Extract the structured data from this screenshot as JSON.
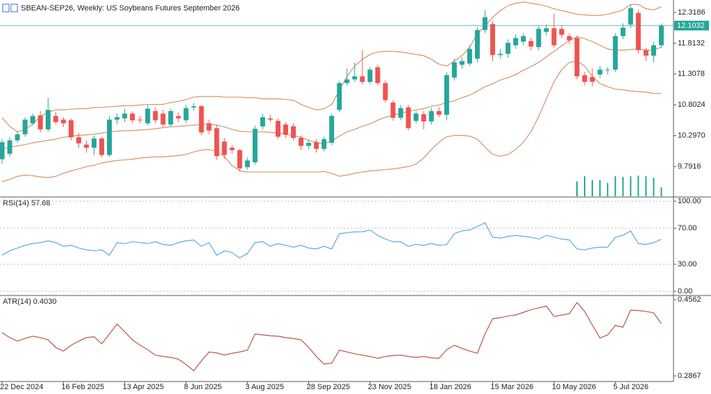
{
  "chart_data": [
    {
      "type": "candlestick",
      "title": "SBEAN-SEP26, Weekly:  US Soybeans Futures September 2026",
      "categories": [
        "22 Dec 2024",
        null,
        null,
        null,
        null,
        null,
        null,
        null,
        "16 Feb 2025",
        null,
        null,
        null,
        null,
        null,
        null,
        null,
        "13 Apr 2025",
        null,
        null,
        null,
        null,
        null,
        null,
        null,
        "8 Jun 2025",
        null,
        null,
        null,
        null,
        null,
        null,
        null,
        "3 Aug 2025",
        null,
        null,
        null,
        null,
        null,
        null,
        null,
        "28 Sep 2025",
        null,
        null,
        null,
        null,
        null,
        null,
        null,
        "23 Nov 2025",
        null,
        null,
        null,
        null,
        null,
        null,
        null,
        "18 Jan 2026",
        null,
        null,
        null,
        null,
        null,
        null,
        null,
        "15 Mar 2026",
        null,
        null,
        null,
        null,
        null,
        null,
        null,
        "10 May 2026",
        null,
        null,
        null,
        null,
        null,
        null,
        null,
        "5 Jul 2026",
        null,
        null,
        null,
        null,
        null,
        null
      ],
      "ohlc": [
        [
          9.91,
          10.24,
          9.84,
          10.19
        ],
        [
          10.0,
          10.27,
          9.95,
          10.22
        ],
        [
          10.22,
          10.36,
          10.18,
          10.32
        ],
        [
          10.32,
          10.6,
          10.28,
          10.56
        ],
        [
          10.5,
          10.66,
          10.46,
          10.62
        ],
        [
          10.63,
          10.7,
          10.35,
          10.4
        ],
        [
          10.4,
          10.92,
          10.36,
          10.72
        ],
        [
          10.62,
          10.68,
          10.48,
          10.52
        ],
        [
          10.56,
          10.6,
          10.44,
          10.5
        ],
        [
          10.55,
          10.58,
          10.22,
          10.27
        ],
        [
          10.27,
          10.34,
          10.1,
          10.17
        ],
        [
          10.15,
          10.22,
          10.02,
          10.1
        ],
        [
          10.1,
          10.3,
          9.98,
          10.25
        ],
        [
          10.25,
          10.28,
          9.94,
          9.98
        ],
        [
          9.98,
          10.62,
          9.95,
          10.56
        ],
        [
          10.56,
          10.66,
          10.48,
          10.6
        ],
        [
          10.58,
          10.74,
          10.52,
          10.66
        ],
        [
          10.66,
          10.7,
          10.5,
          10.55
        ],
        [
          10.56,
          10.62,
          10.5,
          10.55
        ],
        [
          10.5,
          10.8,
          10.46,
          10.74
        ],
        [
          10.7,
          10.76,
          10.5,
          10.55
        ],
        [
          10.66,
          10.72,
          10.44,
          10.48
        ],
        [
          10.48,
          10.74,
          10.44,
          10.7
        ],
        [
          10.62,
          10.68,
          10.52,
          10.58
        ],
        [
          10.55,
          10.8,
          10.5,
          10.75
        ],
        [
          10.76,
          10.84,
          10.7,
          10.78
        ],
        [
          10.78,
          10.8,
          10.3,
          10.35
        ],
        [
          10.5,
          10.56,
          10.32,
          10.38
        ],
        [
          10.42,
          10.48,
          9.9,
          9.96
        ],
        [
          10.2,
          10.26,
          9.92,
          9.98
        ],
        [
          10.1,
          10.14,
          10.0,
          10.06
        ],
        [
          10.06,
          10.08,
          9.72,
          9.76
        ],
        [
          9.78,
          9.94,
          9.74,
          9.89
        ],
        [
          9.86,
          10.46,
          9.82,
          10.41
        ],
        [
          10.45,
          10.66,
          10.4,
          10.6
        ],
        [
          10.58,
          10.64,
          10.52,
          10.56
        ],
        [
          10.54,
          10.58,
          10.24,
          10.28
        ],
        [
          10.48,
          10.52,
          10.26,
          10.31
        ],
        [
          10.45,
          10.5,
          10.22,
          10.26
        ],
        [
          10.26,
          10.3,
          10.06,
          10.13
        ],
        [
          10.13,
          10.22,
          10.08,
          10.18
        ],
        [
          10.19,
          10.24,
          10.02,
          10.08
        ],
        [
          10.08,
          10.28,
          10.04,
          10.24
        ],
        [
          10.18,
          10.66,
          10.14,
          10.62
        ],
        [
          10.72,
          11.2,
          10.68,
          11.16
        ],
        [
          11.16,
          11.4,
          11.12,
          11.22
        ],
        [
          11.22,
          11.5,
          11.18,
          11.27
        ],
        [
          11.27,
          11.7,
          11.14,
          11.18
        ],
        [
          11.18,
          11.42,
          11.14,
          11.38
        ],
        [
          11.42,
          11.46,
          11.12,
          11.16
        ],
        [
          11.16,
          11.2,
          10.84,
          10.88
        ],
        [
          10.84,
          10.88,
          10.54,
          10.59
        ],
        [
          10.59,
          10.8,
          10.55,
          10.75
        ],
        [
          10.76,
          10.8,
          10.38,
          10.42
        ],
        [
          10.54,
          10.7,
          10.5,
          10.66
        ],
        [
          10.65,
          10.7,
          10.4,
          10.53
        ],
        [
          10.53,
          10.76,
          10.48,
          10.7
        ],
        [
          10.7,
          10.76,
          10.6,
          10.64
        ],
        [
          10.64,
          11.34,
          10.55,
          11.29
        ],
        [
          11.25,
          11.56,
          11.2,
          11.5
        ],
        [
          11.46,
          11.58,
          11.4,
          11.52
        ],
        [
          11.48,
          11.78,
          11.44,
          11.72
        ],
        [
          11.56,
          12.08,
          11.5,
          12.03
        ],
        [
          12.03,
          12.36,
          11.98,
          12.24
        ],
        [
          12.13,
          12.18,
          11.52,
          11.62
        ],
        [
          11.62,
          11.72,
          11.56,
          11.64
        ],
        [
          11.64,
          11.88,
          11.58,
          11.82
        ],
        [
          11.78,
          11.96,
          11.72,
          11.9
        ],
        [
          11.84,
          11.98,
          11.78,
          11.93
        ],
        [
          11.85,
          11.9,
          11.7,
          11.76
        ],
        [
          11.75,
          12.1,
          11.7,
          12.05
        ],
        [
          12.0,
          12.12,
          11.94,
          12.06
        ],
        [
          12.06,
          12.3,
          11.74,
          11.78
        ],
        [
          12.05,
          12.1,
          11.9,
          11.95
        ],
        [
          11.93,
          11.98,
          11.8,
          11.86
        ],
        [
          11.9,
          11.94,
          11.22,
          11.27
        ],
        [
          11.29,
          11.34,
          11.12,
          11.18
        ],
        [
          11.26,
          11.4,
          11.1,
          11.18
        ],
        [
          11.3,
          11.44,
          11.24,
          11.38
        ],
        [
          11.37,
          11.42,
          11.3,
          11.38
        ],
        [
          11.38,
          11.98,
          11.34,
          11.93
        ],
        [
          11.93,
          12.14,
          11.88,
          12.07
        ],
        [
          12.12,
          12.44,
          12.06,
          12.39
        ],
        [
          12.31,
          12.36,
          11.64,
          11.7
        ],
        [
          11.7,
          11.74,
          11.52,
          11.61
        ],
        [
          11.61,
          11.84,
          11.5,
          11.78
        ],
        [
          11.78,
          12.14,
          11.74,
          12.1
        ]
      ],
      "bull_color": "#26a69a",
      "bear_color": "#ef5350",
      "bands": {
        "color": "#d4895a",
        "upper": [
          10.59,
          10.45,
          10.36,
          10.4,
          10.49,
          10.61,
          10.68,
          10.72,
          10.72,
          10.73,
          10.74,
          10.74,
          10.76,
          10.76,
          10.77,
          10.78,
          10.79,
          10.79,
          10.8,
          10.81,
          10.81,
          10.81,
          10.84,
          10.86,
          10.89,
          10.93,
          10.94,
          10.94,
          10.94,
          10.93,
          10.93,
          10.93,
          10.92,
          10.92,
          10.9,
          10.9,
          10.9,
          10.89,
          10.88,
          10.81,
          10.76,
          10.72,
          10.74,
          10.81,
          11.04,
          11.27,
          11.44,
          11.55,
          11.63,
          11.67,
          11.68,
          11.68,
          11.67,
          11.65,
          11.63,
          11.61,
          11.55,
          11.47,
          11.44,
          11.52,
          11.61,
          11.75,
          11.97,
          12.09,
          12.24,
          12.35,
          12.43,
          12.47,
          12.49,
          12.47,
          12.45,
          12.42,
          12.38,
          12.35,
          12.32,
          12.29,
          12.28,
          12.27,
          12.27,
          12.29,
          12.32,
          12.36,
          12.45,
          12.45,
          12.38,
          12.36,
          12.41
        ],
        "middle": [
          10.07,
          10.11,
          10.13,
          10.15,
          10.18,
          10.2,
          10.22,
          10.24,
          10.27,
          10.29,
          10.3,
          10.31,
          10.32,
          10.34,
          10.36,
          10.37,
          10.38,
          10.38,
          10.39,
          10.4,
          10.41,
          10.43,
          10.44,
          10.45,
          10.46,
          10.47,
          10.48,
          10.49,
          10.47,
          10.44,
          10.4,
          10.37,
          10.36,
          10.36,
          10.36,
          10.35,
          10.34,
          10.32,
          10.3,
          10.27,
          10.22,
          10.19,
          10.16,
          10.21,
          10.29,
          10.36,
          10.4,
          10.45,
          10.49,
          10.55,
          10.6,
          10.63,
          10.67,
          10.69,
          10.72,
          10.74,
          10.78,
          10.8,
          10.84,
          10.87,
          10.92,
          10.96,
          11.03,
          11.1,
          11.15,
          11.21,
          11.25,
          11.3,
          11.37,
          11.43,
          11.5,
          11.59,
          11.68,
          11.77,
          11.86,
          11.92,
          11.89,
          11.84,
          11.78,
          11.72,
          11.7,
          11.7,
          11.71,
          11.72,
          11.7,
          11.7,
          11.75
        ],
        "lower": [
          9.54,
          9.58,
          9.63,
          9.65,
          9.64,
          9.62,
          9.61,
          9.63,
          9.68,
          9.72,
          9.75,
          9.79,
          9.81,
          9.85,
          9.87,
          9.89,
          9.9,
          9.91,
          9.93,
          9.94,
          9.95,
          9.95,
          9.96,
          9.97,
          9.99,
          10.03,
          10.06,
          10.07,
          10.04,
          9.95,
          9.81,
          9.72,
          9.7,
          9.7,
          9.7,
          9.7,
          9.7,
          9.7,
          9.7,
          9.7,
          9.7,
          9.7,
          9.71,
          9.68,
          9.63,
          9.65,
          9.68,
          9.7,
          9.72,
          9.73,
          9.74,
          9.75,
          9.77,
          9.79,
          9.83,
          9.93,
          10.07,
          10.19,
          10.28,
          10.3,
          10.3,
          10.29,
          10.24,
          10.11,
          9.99,
          9.96,
          9.99,
          10.07,
          10.19,
          10.36,
          10.61,
          10.9,
          11.18,
          11.38,
          11.5,
          11.52,
          11.44,
          11.27,
          11.15,
          11.1,
          11.06,
          11.05,
          11.03,
          11.02,
          11.01,
          10.99,
          10.99
        ]
      },
      "volume": {
        "color": "#26a69a",
        "values": [
          null,
          null,
          null,
          null,
          null,
          null,
          null,
          null,
          null,
          null,
          null,
          null,
          null,
          null,
          null,
          null,
          null,
          null,
          null,
          null,
          null,
          null,
          null,
          null,
          null,
          null,
          null,
          null,
          null,
          null,
          null,
          null,
          null,
          null,
          null,
          null,
          null,
          null,
          null,
          null,
          null,
          null,
          null,
          null,
          null,
          null,
          null,
          null,
          null,
          null,
          null,
          null,
          null,
          null,
          null,
          null,
          null,
          null,
          null,
          null,
          null,
          null,
          null,
          null,
          null,
          null,
          null,
          null,
          null,
          null,
          null,
          null,
          null,
          null,
          null,
          20,
          27,
          22,
          22,
          18,
          27,
          26,
          27,
          28,
          27,
          25,
          12
        ]
      },
      "last_price": 12.1032,
      "ylim": [
        9.302,
        12.523
      ],
      "yticks": [
        12.3186,
        11.8132,
        11.3078,
        10.8024,
        {
          "value": 10.297,
          "label": "10.2970"
        },
        9.7916
      ]
    },
    {
      "type": "line",
      "legend": "RSI(14) 57.68",
      "color": "#4aa3df",
      "grid": true,
      "values": [
        40,
        45,
        48,
        51,
        53,
        54,
        56,
        54,
        50,
        51,
        48,
        46,
        45,
        46,
        40,
        54,
        53,
        55,
        54,
        53,
        55,
        52,
        51,
        54,
        56,
        57,
        50,
        54,
        40,
        45,
        43,
        37,
        42,
        54,
        55,
        50,
        53,
        51,
        49,
        51,
        48,
        47,
        50,
        47,
        64,
        65,
        66,
        66,
        68,
        62,
        58,
        55,
        55,
        50,
        52,
        51,
        53,
        51,
        52,
        64,
        67,
        68,
        72,
        76,
        60,
        59,
        61,
        62,
        61,
        60,
        58,
        62,
        60,
        58,
        57,
        47,
        46,
        48,
        49,
        49,
        60,
        62,
        67,
        53,
        52,
        54,
        57.68
      ],
      "ylim": [
        -3.1,
        103.9
      ],
      "yticks": [
        {
          "value": 100,
          "label": "100.00"
        },
        {
          "value": 70,
          "label": "70.00"
        },
        {
          "value": 30,
          "label": "30.00"
        },
        {
          "value": 0,
          "label": "0.00"
        }
      ]
    },
    {
      "type": "line",
      "legend": "ATR(14) 0.4030",
      "color": "#b5473a",
      "grid": false,
      "values": [
        0.383,
        0.372,
        0.364,
        0.37,
        0.375,
        0.372,
        0.367,
        0.35,
        0.342,
        0.355,
        0.364,
        0.372,
        0.374,
        0.358,
        0.38,
        0.402,
        0.385,
        0.367,
        0.355,
        0.345,
        0.333,
        0.33,
        0.328,
        0.324,
        0.312,
        0.298,
        0.32,
        0.34,
        0.338,
        0.333,
        0.337,
        0.34,
        0.344,
        0.38,
        0.378,
        0.376,
        0.375,
        0.372,
        0.37,
        0.367,
        0.35,
        0.33,
        0.313,
        0.315,
        0.344,
        0.34,
        0.336,
        0.333,
        0.33,
        0.326,
        0.33,
        0.332,
        0.333,
        0.33,
        0.328,
        0.33,
        0.327,
        0.326,
        0.345,
        0.355,
        0.348,
        0.342,
        0.337,
        0.38,
        0.414,
        0.416,
        0.42,
        0.422,
        0.428,
        0.434,
        0.438,
        0.442,
        0.419,
        0.422,
        0.425,
        0.45,
        0.43,
        0.4,
        0.371,
        0.378,
        0.399,
        0.395,
        0.433,
        0.432,
        0.43,
        0.427,
        0.403
      ],
      "ylim": [
        0.2743,
        0.464
      ],
      "yticks": [
        0.4562,
        0.2867
      ]
    }
  ]
}
